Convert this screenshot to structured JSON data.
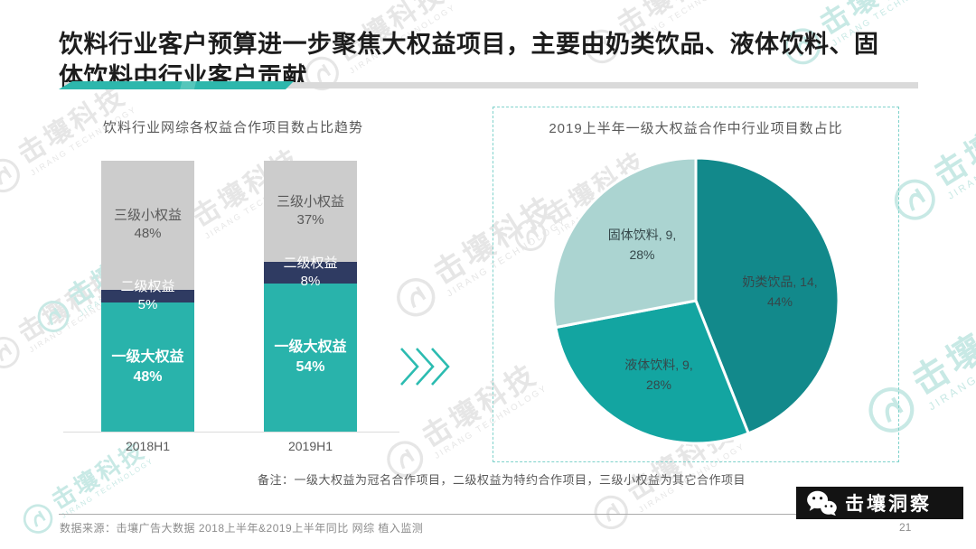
{
  "slide": {
    "title": "饮料行业客户预算进一步聚焦大权益项目，主要由奶类饮品、液体饮料、固体饮料中行业客户贡献",
    "note": "备注：一级大权益为冠名合作项目，二级权益为特约合作项目，三级小权益为其它合作项目",
    "source": "数据来源：击壤广告大数据  2018上半年&2019上半年同比  网综 植入监测",
    "page_number": "21",
    "brand_badge": "击壤洞察",
    "watermark": {
      "text": "击壤科技",
      "subtext": "JIRANG TECHNOLOGY"
    }
  },
  "colors": {
    "accent_teal": "#2db7ac",
    "underline_gray": "#dadada",
    "bar_tier1_teal": "#29b3ab",
    "bar_tier2_navy": "#2f3b62",
    "bar_tier3_gray": "#cccccc",
    "pie_milk_dark_teal": "#12898b",
    "pie_liquid_mid_teal": "#13a5a1",
    "pie_solid_light_teal": "#abd4d1",
    "dashed_border_teal": "#7fd2cb",
    "badge_black": "#131313"
  },
  "chart_data": [
    {
      "type": "bar",
      "subtype": "stacked-100-percent-column",
      "title": "饮料行业网综各权益合作项目数占比趋势",
      "categories": [
        "2018H1",
        "2019H1"
      ],
      "series": [
        {
          "name": "三级小权益",
          "values": [
            48,
            37
          ],
          "labels": [
            "48%",
            "37%"
          ],
          "color": "#cccccc"
        },
        {
          "name": "二级权益",
          "values": [
            5,
            8
          ],
          "labels": [
            "5%",
            "8%"
          ],
          "color": "#2f3b62"
        },
        {
          "name": "一级大权益",
          "values": [
            48,
            54
          ],
          "labels": [
            "48%",
            "54%"
          ],
          "color": "#29b3ab"
        }
      ],
      "unit": "%",
      "ylim": [
        0,
        100
      ],
      "grid": "off",
      "legend": "inside-segments"
    },
    {
      "type": "pie",
      "title": "2019上半年一级大权益合作中行业项目数占比",
      "start_angle_deg": 0,
      "direction": "clockwise",
      "slices": [
        {
          "label": "奶类饮品",
          "count": 14,
          "pct": 44,
          "line1": "奶类饮品, 14,",
          "line2": "44%",
          "color": "#12898b"
        },
        {
          "label": "液体饮料",
          "count": 9,
          "pct": 28,
          "line1": "液体饮料, 9,",
          "line2": "28%",
          "color": "#13a5a1"
        },
        {
          "label": "固体饮料",
          "count": 9,
          "pct": 28,
          "line1": "固体饮料, 9,",
          "line2": "28%",
          "color": "#abd4d1"
        }
      ]
    }
  ]
}
